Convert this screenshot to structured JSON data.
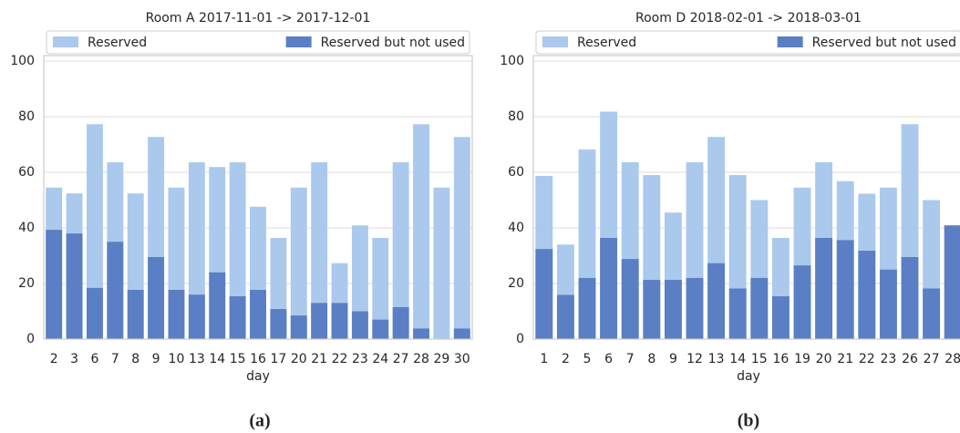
{
  "chart_data": [
    {
      "type": "bar",
      "overlay": true,
      "title": "Room A 2017-11-01 -> 2017-12-01",
      "xlabel": "day",
      "caption": "(a)",
      "categories": [
        "2",
        "3",
        "6",
        "7",
        "8",
        "9",
        "10",
        "13",
        "14",
        "15",
        "16",
        "17",
        "20",
        "21",
        "22",
        "23",
        "24",
        "27",
        "28",
        "29",
        "30"
      ],
      "series": [
        {
          "name": "Reserved",
          "color": "#abc9ed",
          "values": [
            54.5,
            52.4,
            77.3,
            63.6,
            52.4,
            72.7,
            54.5,
            63.6,
            61.9,
            63.6,
            47.6,
            36.4,
            54.5,
            63.6,
            27.3,
            40.9,
            36.4,
            63.6,
            77.3,
            54.5,
            72.7
          ]
        },
        {
          "name": "Reserved but not used",
          "color": "#5a7fc4",
          "values": [
            39.3,
            38,
            18.4,
            35,
            17.7,
            29.5,
            17.7,
            16,
            24,
            15.4,
            17.7,
            10.8,
            8.5,
            13,
            13,
            10,
            7,
            11.5,
            3.8,
            0,
            3.8
          ]
        }
      ],
      "ylim": [
        0,
        100
      ],
      "yticks": [
        0,
        20,
        40,
        60,
        80,
        100
      ],
      "grid": true,
      "legend": "top"
    },
    {
      "type": "bar",
      "overlay": true,
      "title": "Room D 2018-02-01 -> 2018-03-01",
      "xlabel": "day",
      "caption": "(b)",
      "categories": [
        "1",
        "2",
        "5",
        "6",
        "7",
        "8",
        "9",
        "12",
        "13",
        "14",
        "15",
        "16",
        "19",
        "20",
        "21",
        "22",
        "23",
        "26",
        "27",
        "28"
      ],
      "series": [
        {
          "name": "Reserved",
          "color": "#abc9ed",
          "values": [
            58.7,
            34,
            68.2,
            81.8,
            63.6,
            59,
            45.5,
            63.6,
            72.7,
            59,
            50,
            36.4,
            54.5,
            63.6,
            56.8,
            52.3,
            54.5,
            77.3,
            50,
            40.9
          ]
        },
        {
          "name": "Reserved but not used",
          "color": "#5a7fc4",
          "values": [
            32.4,
            15.9,
            22,
            36.4,
            28.8,
            21.3,
            21.3,
            22,
            27.3,
            18.2,
            22,
            15.4,
            26.5,
            36.4,
            35.6,
            31.8,
            25,
            29.5,
            18.2,
            40.9
          ]
        }
      ],
      "ylim": [
        0,
        100
      ],
      "yticks": [
        0,
        20,
        40,
        60,
        80,
        100
      ],
      "grid": true,
      "legend": "top"
    }
  ]
}
